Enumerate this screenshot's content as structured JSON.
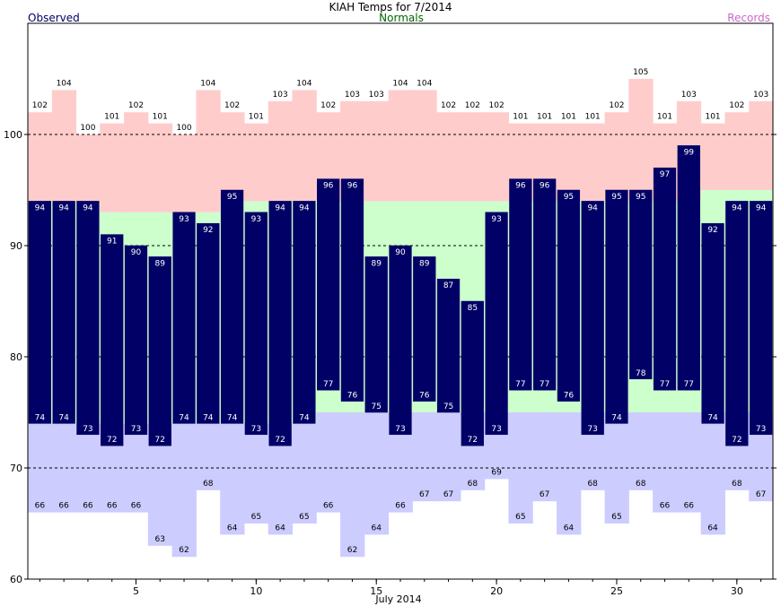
{
  "chart_data": {
    "type": "bar",
    "title": "KIAH Temps for 7/2014",
    "legend": {
      "observed": "Observed",
      "normals": "Normals",
      "records": "Records"
    },
    "xlabel": "July 2014",
    "ylabel": "",
    "ylim": [
      60,
      110
    ],
    "yticks": [
      60,
      70,
      80,
      90,
      100
    ],
    "xticks": [
      5,
      10,
      15,
      20,
      25,
      30
    ],
    "grid": "dashed at 70, 80, 90, 100",
    "colors": {
      "observed": "#000066",
      "normal_band": "#ccffcc",
      "record_high_band": "#ffcccc",
      "record_low_band": "#ccccff",
      "observed_legend": "#000066",
      "normals_legend": "#006600",
      "records_legend": "#cc66cc"
    },
    "days": [
      1,
      2,
      3,
      4,
      5,
      6,
      7,
      8,
      9,
      10,
      11,
      12,
      13,
      14,
      15,
      16,
      17,
      18,
      19,
      20,
      21,
      22,
      23,
      24,
      25,
      26,
      27,
      28,
      29,
      30,
      31
    ],
    "series": [
      {
        "name": "Observed High",
        "values": [
          94,
          94,
          94,
          91,
          90,
          89,
          93,
          92,
          95,
          93,
          94,
          94,
          96,
          96,
          89,
          90,
          89,
          87,
          85,
          93,
          96,
          96,
          95,
          94,
          95,
          95,
          97,
          99,
          92,
          94,
          94
        ]
      },
      {
        "name": "Observed Low",
        "values": [
          74,
          74,
          73,
          72,
          73,
          72,
          74,
          74,
          74,
          73,
          72,
          74,
          77,
          76,
          75,
          73,
          76,
          75,
          72,
          73,
          77,
          77,
          76,
          73,
          74,
          78,
          77,
          77,
          74,
          72,
          73
        ]
      },
      {
        "name": "Record High",
        "values": [
          102,
          104,
          100,
          101,
          102,
          101,
          100,
          104,
          102,
          101,
          103,
          104,
          102,
          103,
          103,
          104,
          104,
          102,
          102,
          102,
          101,
          101,
          101,
          101,
          102,
          105,
          101,
          103,
          101,
          102,
          103
        ]
      },
      {
        "name": "Record Low",
        "values": [
          66,
          66,
          66,
          66,
          66,
          63,
          62,
          68,
          64,
          65,
          64,
          65,
          66,
          62,
          64,
          66,
          67,
          67,
          68,
          69,
          65,
          67,
          64,
          68,
          65,
          68,
          66,
          66,
          64,
          68,
          67
        ]
      },
      {
        "name": "Normal High",
        "values": [
          94,
          94,
          94,
          93,
          93,
          93,
          93,
          93,
          94,
          94,
          94,
          94,
          94,
          94,
          94,
          94,
          94,
          94,
          94,
          94,
          94,
          94,
          94,
          94,
          94,
          94,
          94,
          94,
          95,
          95,
          95
        ]
      },
      {
        "name": "Normal Low",
        "values": [
          74,
          74,
          74,
          74,
          74,
          74,
          74,
          74,
          74,
          74,
          74,
          74,
          75,
          75,
          75,
          75,
          75,
          75,
          75,
          75,
          75,
          75,
          75,
          75,
          75,
          75,
          75,
          75,
          75,
          75,
          75
        ]
      }
    ]
  }
}
